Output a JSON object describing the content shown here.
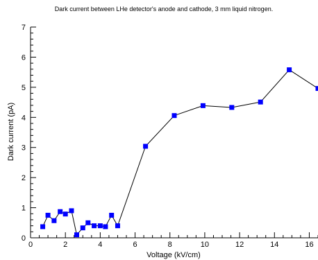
{
  "chart_data": {
    "type": "line",
    "title": "Dark current between LHe detector's anode and cathode, 3 mm liquid nitrogen.",
    "xlabel": "Voltage (kV/cm)",
    "ylabel": "Dark current (pA)",
    "xlim": [
      0,
      16.5
    ],
    "ylim": [
      0,
      7
    ],
    "x_ticks": [
      0,
      2,
      4,
      6,
      8,
      10,
      12,
      14,
      16
    ],
    "y_ticks": [
      0,
      1,
      2,
      3,
      4,
      5,
      6,
      7
    ],
    "x_tick_labels": [
      "0",
      "2",
      "4",
      "6",
      "8",
      "10",
      "12",
      "14",
      "16"
    ],
    "y_tick_labels": [
      "0",
      "1",
      "2",
      "3",
      "4",
      "5",
      "6",
      "7"
    ],
    "grid": false,
    "legend": "none",
    "marker": "square",
    "marker_color": "#0000ff",
    "line_color": "#000000",
    "series": [
      {
        "x": [
          0.7,
          1.0,
          1.35,
          1.7,
          2.0,
          2.35,
          2.65,
          3.0,
          3.3,
          3.65,
          4.0,
          4.3,
          4.65,
          5.0,
          6.6,
          8.25,
          9.9,
          11.55,
          13.2,
          14.85,
          16.5
        ],
        "y": [
          0.37,
          0.75,
          0.57,
          0.87,
          0.79,
          0.9,
          0.1,
          0.33,
          0.5,
          0.4,
          0.4,
          0.37,
          0.75,
          0.4,
          3.04,
          4.06,
          4.39,
          4.33,
          4.51,
          5.58,
          4.96
        ]
      }
    ]
  }
}
